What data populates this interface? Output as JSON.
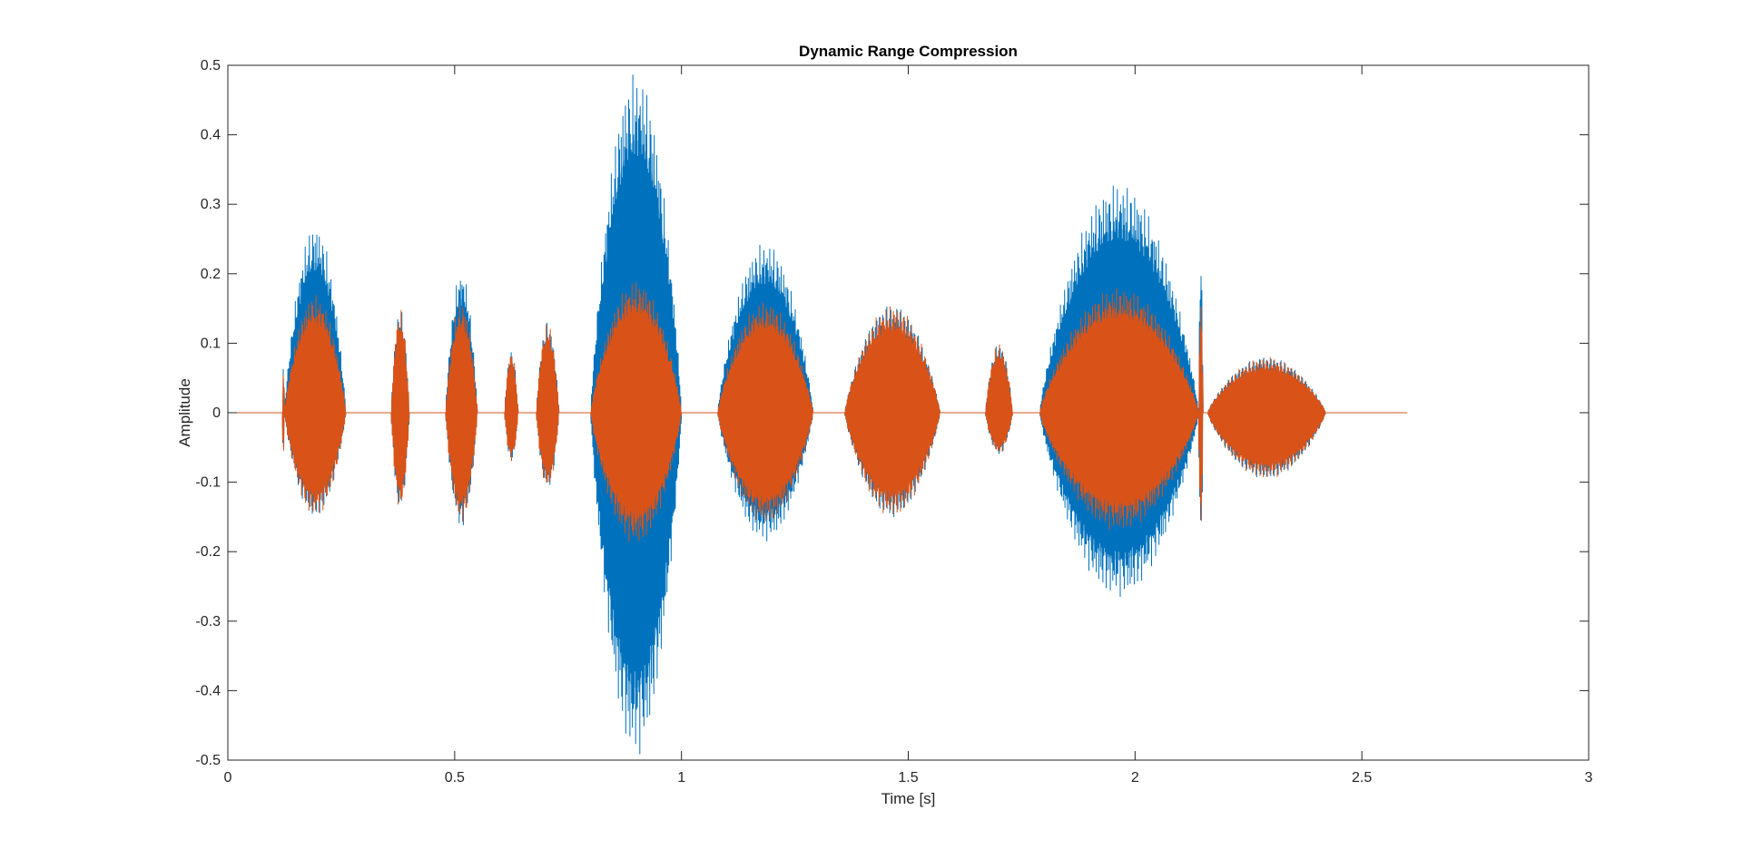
{
  "chart_data": {
    "type": "line",
    "title": "Dynamic Range Compression",
    "xlabel": "Time [s]",
    "ylabel": "Amplitude",
    "xlim": [
      0,
      3
    ],
    "ylim": [
      -0.5,
      0.5
    ],
    "x_ticks": [
      0,
      0.5,
      1,
      1.5,
      2,
      2.5,
      3
    ],
    "x_tick_labels": [
      "0",
      "0.5",
      "1",
      "1.5",
      "2",
      "2.5",
      "3"
    ],
    "y_ticks": [
      0.5,
      0.4,
      0.3,
      0.2,
      0.1,
      0,
      -0.1,
      -0.2,
      -0.3,
      -0.4,
      -0.5
    ],
    "y_tick_labels": [
      "0.5",
      "0.4",
      "0.3",
      "0.2",
      "0.1",
      "0",
      "-0.1",
      "-0.2",
      "-0.3",
      "-0.4",
      "-0.5"
    ],
    "grid": false,
    "legend": "none",
    "series": [
      {
        "color": "#0072BD",
        "segments": [
          {
            "t0": 0.12,
            "t1": 0.125,
            "peak_pos": 0.07,
            "peak_neg": -0.07
          },
          {
            "t0": 0.125,
            "t1": 0.26,
            "peak_pos": 0.27,
            "peak_neg": -0.15
          },
          {
            "t0": 0.36,
            "t1": 0.4,
            "peak_pos": 0.15,
            "peak_neg": -0.14
          },
          {
            "t0": 0.48,
            "t1": 0.55,
            "peak_pos": 0.205,
            "peak_neg": -0.165
          },
          {
            "t0": 0.61,
            "t1": 0.64,
            "peak_pos": 0.09,
            "peak_neg": -0.07
          },
          {
            "t0": 0.68,
            "t1": 0.73,
            "peak_pos": 0.13,
            "peak_neg": -0.11
          },
          {
            "t0": 0.8,
            "t1": 1.0,
            "peak_pos": 0.49,
            "peak_neg": -0.495
          },
          {
            "t0": 1.08,
            "t1": 1.29,
            "peak_pos": 0.245,
            "peak_neg": -0.185
          },
          {
            "t0": 1.36,
            "t1": 1.57,
            "peak_pos": 0.155,
            "peak_neg": -0.15
          },
          {
            "t0": 1.67,
            "t1": 1.73,
            "peak_pos": 0.1,
            "peak_neg": -0.06
          },
          {
            "t0": 1.79,
            "t1": 2.14,
            "peak_pos": 0.33,
            "peak_neg": -0.265
          },
          {
            "t0": 2.14,
            "t1": 2.15,
            "peak_pos": 0.23,
            "peak_neg": -0.19
          },
          {
            "t0": 2.16,
            "t1": 2.42,
            "peak_pos": 0.08,
            "peak_neg": -0.095
          }
        ]
      },
      {
        "color": "#D95319",
        "segments": [
          {
            "t0": 0.12,
            "t1": 0.125,
            "peak_pos": 0.07,
            "peak_neg": -0.07
          },
          {
            "t0": 0.125,
            "t1": 0.26,
            "peak_pos": 0.17,
            "peak_neg": -0.15
          },
          {
            "t0": 0.36,
            "t1": 0.4,
            "peak_pos": 0.15,
            "peak_neg": -0.14
          },
          {
            "t0": 0.48,
            "t1": 0.55,
            "peak_pos": 0.16,
            "peak_neg": -0.16
          },
          {
            "t0": 0.61,
            "t1": 0.64,
            "peak_pos": 0.09,
            "peak_neg": -0.07
          },
          {
            "t0": 0.68,
            "t1": 0.73,
            "peak_pos": 0.13,
            "peak_neg": -0.11
          },
          {
            "t0": 0.8,
            "t1": 1.0,
            "peak_pos": 0.19,
            "peak_neg": -0.19
          },
          {
            "t0": 1.08,
            "t1": 1.29,
            "peak_pos": 0.16,
            "peak_neg": -0.16
          },
          {
            "t0": 1.36,
            "t1": 1.57,
            "peak_pos": 0.155,
            "peak_neg": -0.15
          },
          {
            "t0": 1.67,
            "t1": 1.73,
            "peak_pos": 0.1,
            "peak_neg": -0.06
          },
          {
            "t0": 1.79,
            "t1": 2.14,
            "peak_pos": 0.18,
            "peak_neg": -0.17
          },
          {
            "t0": 2.14,
            "t1": 2.15,
            "peak_pos": 0.17,
            "peak_neg": -0.17
          },
          {
            "t0": 2.16,
            "t1": 2.42,
            "peak_pos": 0.08,
            "peak_neg": -0.095
          }
        ]
      }
    ],
    "signal_extent": [
      0,
      2.6
    ]
  }
}
